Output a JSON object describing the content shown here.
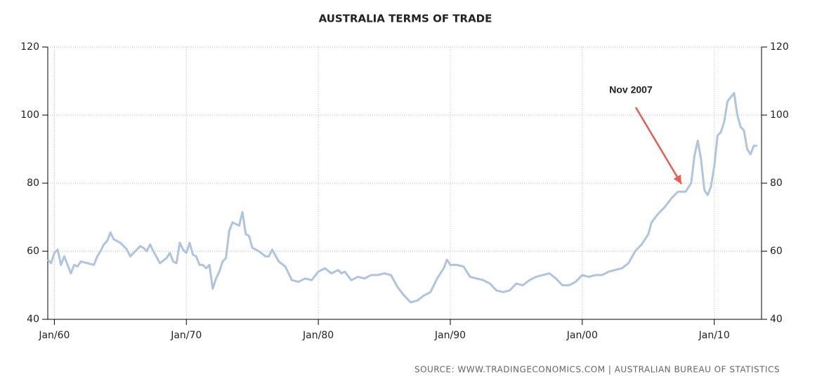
{
  "chart_data": {
    "type": "line",
    "title": "AUSTRALIA TERMS OF TRADE",
    "source": "SOURCE:  WWW.TRADINGECONOMICS.COM  |  AUSTRALIAN BUREAU OF STATISTICS",
    "annotation": {
      "text": "Nov 2007",
      "x": "2007-11"
    },
    "x": [
      "1959-07",
      "1959-10",
      "1960-01",
      "1960-04",
      "1960-07",
      "1960-10",
      "1961-01",
      "1961-04",
      "1961-07",
      "1961-10",
      "1962-01",
      "1962-07",
      "1963-01",
      "1963-04",
      "1963-07",
      "1963-10",
      "1964-01",
      "1964-04",
      "1964-07",
      "1965-01",
      "1965-07",
      "1965-10",
      "1966-01",
      "1966-07",
      "1966-10",
      "1967-01",
      "1967-04",
      "1967-07",
      "1968-01",
      "1968-07",
      "1968-10",
      "1969-01",
      "1969-04",
      "1969-07",
      "1969-10",
      "1970-01",
      "1970-04",
      "1970-07",
      "1970-10",
      "1971-01",
      "1971-04",
      "1971-07",
      "1971-10",
      "1972-01",
      "1972-04",
      "1972-07",
      "1972-10",
      "1973-01",
      "1973-04",
      "1973-07",
      "1974-01",
      "1974-04",
      "1974-07",
      "1974-10",
      "1975-01",
      "1975-07",
      "1976-01",
      "1976-04",
      "1976-07",
      "1977-01",
      "1977-07",
      "1978-01",
      "1978-07",
      "1979-01",
      "1979-07",
      "1980-01",
      "1980-07",
      "1981-01",
      "1981-07",
      "1981-10",
      "1982-01",
      "1982-07",
      "1983-01",
      "1983-07",
      "1984-01",
      "1984-07",
      "1985-01",
      "1985-07",
      "1986-01",
      "1986-07",
      "1987-01",
      "1987-07",
      "1988-01",
      "1988-07",
      "1989-01",
      "1989-07",
      "1989-10",
      "1990-01",
      "1990-07",
      "1991-01",
      "1991-07",
      "1992-01",
      "1992-07",
      "1993-01",
      "1993-07",
      "1994-01",
      "1994-07",
      "1995-01",
      "1995-07",
      "1996-01",
      "1996-07",
      "1997-01",
      "1997-07",
      "1998-01",
      "1998-07",
      "1999-01",
      "1999-07",
      "2000-01",
      "2000-07",
      "2001-01",
      "2001-07",
      "2002-01",
      "2002-07",
      "2003-01",
      "2003-07",
      "2004-01",
      "2004-07",
      "2005-01",
      "2005-04",
      "2005-10",
      "2006-04",
      "2006-10",
      "2007-04",
      "2007-11",
      "2008-04",
      "2008-07",
      "2008-10",
      "2009-01",
      "2009-04",
      "2009-07",
      "2009-10",
      "2010-01",
      "2010-04",
      "2010-07",
      "2010-10",
      "2011-01",
      "2011-07",
      "2011-10",
      "2012-01",
      "2012-04",
      "2012-07",
      "2012-10",
      "2013-01",
      "2013-04"
    ],
    "series": [
      {
        "name": "Terms of Trade",
        "color": "#aec4e0",
        "values": [
          57.5,
          56.5,
          59.5,
          60.5,
          56,
          58.5,
          56,
          53.5,
          56,
          55.5,
          57,
          56.5,
          56,
          58.5,
          60,
          62,
          63,
          65.5,
          63.5,
          62.5,
          60.5,
          58.5,
          59.5,
          61.5,
          61,
          60,
          62,
          60,
          56.5,
          58,
          59.5,
          57,
          56.5,
          62.5,
          60.5,
          59.5,
          62.5,
          59,
          58.5,
          56,
          56,
          55,
          56,
          49,
          52,
          54,
          57,
          58,
          66,
          68.5,
          67.5,
          71.5,
          65,
          64.5,
          61,
          60,
          58.5,
          58.5,
          60.5,
          57,
          55.5,
          51.5,
          51,
          52,
          51.5,
          54,
          55,
          53.5,
          54.5,
          53.5,
          54,
          51.5,
          52.5,
          52,
          53,
          53,
          53.5,
          53,
          49.5,
          47,
          45,
          45.5,
          47,
          48,
          52,
          55,
          57.5,
          56,
          56,
          55.5,
          52.5,
          52,
          51.5,
          50.5,
          48.5,
          48,
          48.5,
          50.5,
          50,
          51.5,
          52.5,
          53,
          53.5,
          52,
          50,
          50,
          51,
          53,
          52.5,
          53,
          53,
          54,
          54.5,
          55,
          56.5,
          60,
          62,
          65,
          68.5,
          71,
          73,
          75.5,
          77.5,
          77.5,
          80,
          88,
          92.5,
          87,
          78,
          76.5,
          79,
          85,
          94,
          95,
          98,
          104,
          106.5,
          100,
          96.5,
          95.5,
          90,
          88.5,
          91,
          91
        ]
      }
    ],
    "xlim": [
      "1959-07",
      "2013-08"
    ],
    "xticks": [
      {
        "value": "1960-01",
        "label": "Jan/60"
      },
      {
        "value": "1970-01",
        "label": "Jan/70"
      },
      {
        "value": "1980-01",
        "label": "Jan/80"
      },
      {
        "value": "1990-01",
        "label": "Jan/90"
      },
      {
        "value": "2000-01",
        "label": "Jan/00"
      },
      {
        "value": "2010-01",
        "label": "Jan/10"
      }
    ],
    "ylim": [
      40,
      120
    ],
    "yticks": [
      40,
      60,
      80,
      100,
      120
    ],
    "y2lim": [
      40,
      120
    ],
    "y2ticks": [
      40,
      60,
      80,
      100,
      120
    ],
    "grid": true,
    "annotation_color": "#ec5b4f"
  }
}
